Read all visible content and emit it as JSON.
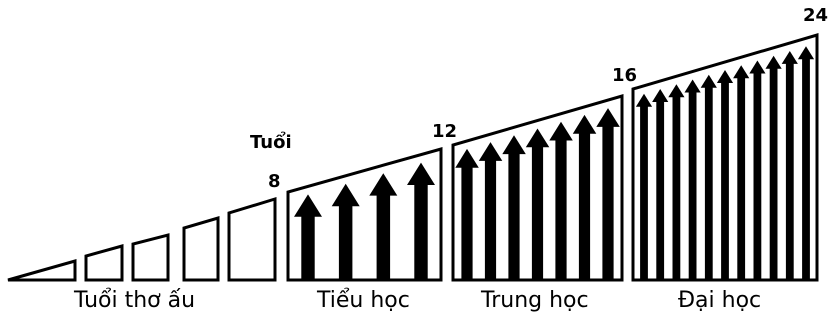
{
  "axis_title": "Tuổi",
  "age_marks": [
    "8",
    "12",
    "16",
    "24"
  ],
  "stages": [
    {
      "label": "Tuổi thơ ấu",
      "arrows": 0
    },
    {
      "label": "Tiểu học",
      "arrows": 4
    },
    {
      "label": "Trung học",
      "arrows": 7
    },
    {
      "label": "Đại học",
      "arrows": 11
    }
  ],
  "colors": {
    "ink": "#000000",
    "background": "#ffffff"
  }
}
